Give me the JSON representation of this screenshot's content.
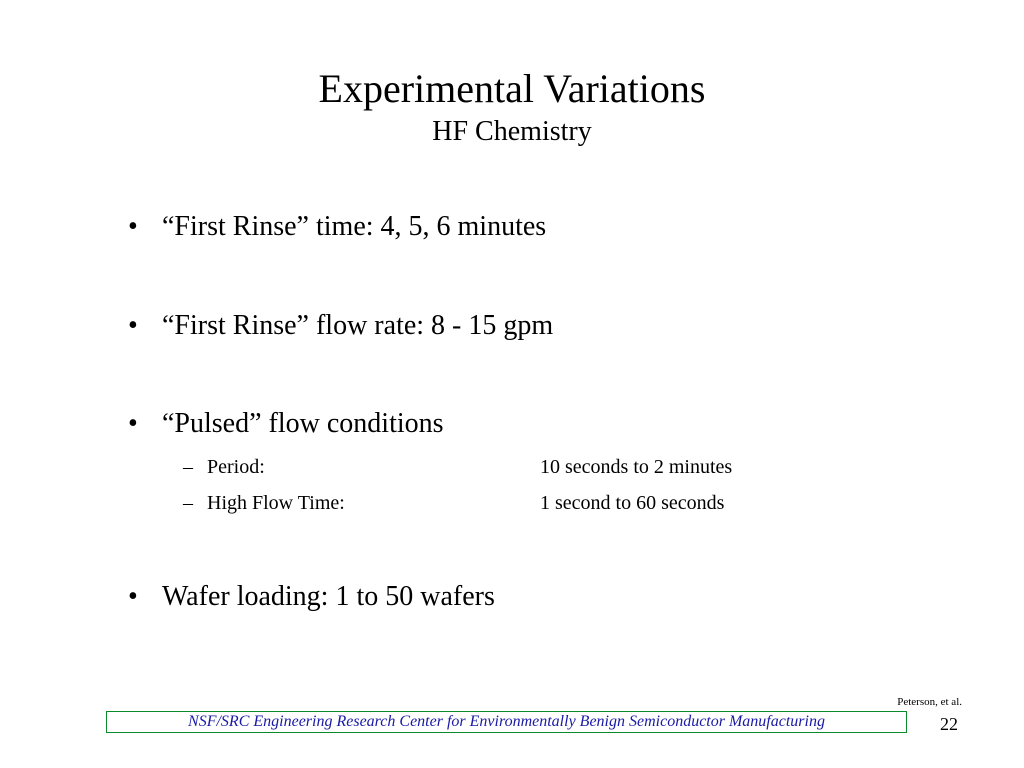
{
  "slide": {
    "title": "Experimental Variations",
    "subtitle": "HF Chemistry",
    "bullets": [
      {
        "marker": "•",
        "text": "“First Rinse” time:  4, 5, 6 minutes"
      },
      {
        "marker": "•",
        "text": "“First Rinse” flow rate:  8 - 15 gpm"
      },
      {
        "marker": "•",
        "text": "“Pulsed” flow conditions",
        "sub_items": [
          {
            "marker": "–",
            "label": "Period:",
            "value": "10 seconds to 2 minutes"
          },
          {
            "marker": "–",
            "label": "High Flow Time:",
            "value": "1 second to 60 seconds"
          }
        ]
      },
      {
        "marker": "•",
        "text": "Wafer loading:  1  to 50 wafers"
      }
    ]
  },
  "footer": {
    "author": "Peterson, et al.",
    "banner": "NSF/SRC Engineering Research Center for Environmentally Benign Semiconductor Manufacturing",
    "page_number": "22"
  },
  "colors": {
    "banner_border": "#0a8a2a",
    "banner_text": "#1a1aa6"
  }
}
